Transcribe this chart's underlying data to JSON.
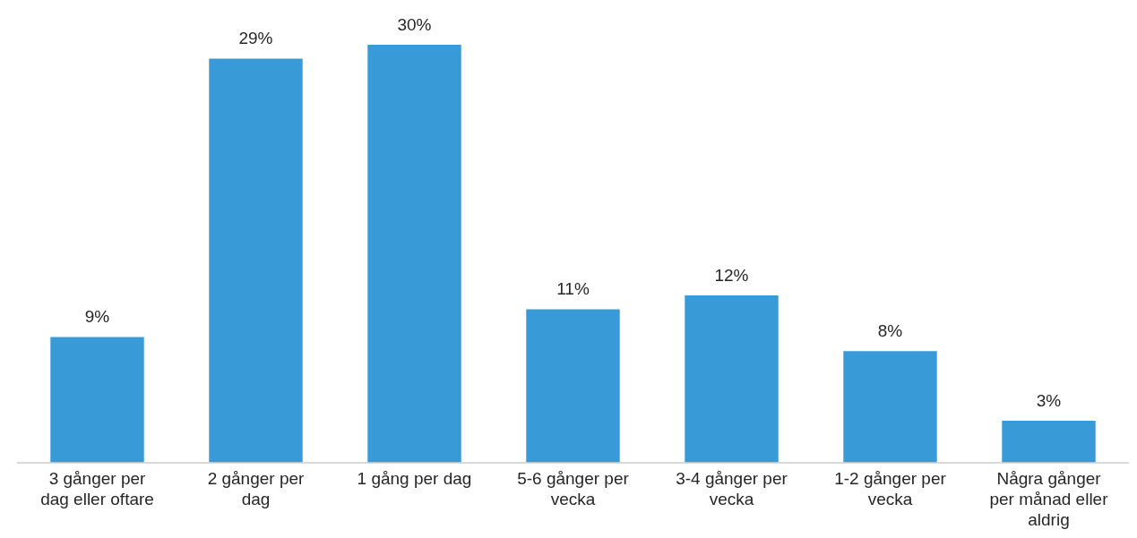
{
  "chart_data": {
    "type": "bar",
    "categories": [
      "3 gånger per dag eller oftare",
      "2 gånger per dag",
      "1 gång per dag",
      "5-6 gånger per vecka",
      "3-4 gånger per vecka",
      "1-2 gånger per vecka",
      "Några gånger per månad eller aldrig"
    ],
    "values": [
      9,
      29,
      30,
      11,
      12,
      8,
      3
    ],
    "value_labels": [
      "9%",
      "29%",
      "30%",
      "11%",
      "12%",
      "8%",
      "3%"
    ],
    "color": "#389bd8",
    "grid": false,
    "legend": false
  }
}
